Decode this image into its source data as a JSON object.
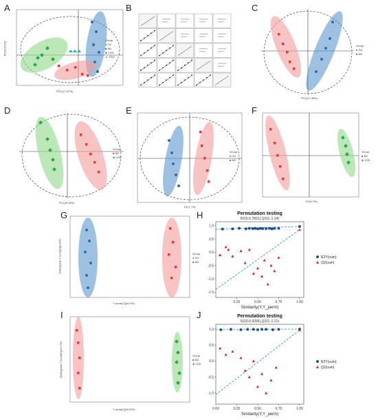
{
  "panel_letters": [
    "A",
    "B",
    "C",
    "D",
    "E",
    "F",
    "G",
    "H",
    "I",
    "J"
  ],
  "colors": {
    "ck": "#2a6fa8",
    "nd": "#e03a3a",
    "ygd": "#2ea84a",
    "ydg": "#20b2aa",
    "ck_fill": "#4f8cc9",
    "nd_fill": "#f29b9b",
    "ygd_fill": "#8fd98a",
    "r2y": "#1f4f8f",
    "q2": "#e01818",
    "dash": "#2a9fd6"
  },
  "legends": {
    "a": {
      "title": "Group",
      "items": [
        "CH",
        "ND",
        "YGD",
        "YDG"
      ]
    },
    "c": {
      "title": "Group",
      "items": [
        "CH",
        "ND"
      ]
    },
    "d": {
      "title": "Group",
      "items": [
        "ND",
        "YGD"
      ]
    },
    "e": {
      "title": "Group",
      "items": [
        "CH",
        "ND"
      ]
    },
    "f": {
      "title": "Group",
      "items": [
        "ND",
        "YGD"
      ]
    },
    "g": {
      "title": "Group",
      "items": [
        "CH",
        "ND"
      ]
    },
    "i": {
      "title": "Group",
      "items": [
        "ND",
        "YGE"
      ]
    },
    "h": {
      "items": [
        "R2Y(cum)",
        "Q2(cum)"
      ]
    },
    "j": {
      "items": [
        "R2Y(cum)",
        "Q2(cum)"
      ]
    }
  },
  "axes": {
    "a": {
      "x": "PC1(17.37%)",
      "y": "PC2(10.1%)"
    },
    "c": {
      "x": "PC1(17.48%)",
      "y": "PC2(15.1%)"
    },
    "d": {
      "x": "PC1(20.8%)",
      "y": "PC2(14.6%)"
    },
    "e": {
      "x": "P1(7.7%)",
      "y": "O1(8.6%)"
    },
    "f": {
      "x": "P1(6.7%)",
      "y": "O1(9.2%)"
    },
    "g": {
      "x": "T score[1](16.9%)",
      "y": "Orthogonal T score[1](9.8%)"
    },
    "i": {
      "x": "T score[1](19.5%)",
      "y": "Orthogonal T score[1](10.7%)"
    }
  },
  "chart_data": [
    {
      "type": "scatter",
      "panel": "H",
      "title": "Permutation testing",
      "subtitle": "R2(0.0.7831),Q2(0,-1.24)",
      "xlabel": "Similarity(Y,Y_perm)",
      "ylabel": "",
      "xlim": [
        0.0,
        1.05
      ],
      "ylim": [
        -1.7,
        1.15
      ],
      "xticks": [
        "0.25",
        "0.50",
        "0.75",
        "1.00"
      ],
      "yticks": [
        "1.0",
        "0.5",
        "0.0",
        "-0.5",
        "-1.0",
        "-1.5"
      ],
      "legend_position": "right",
      "series": [
        {
          "name": "R2Y(cum)",
          "points": [
            [
              0.08,
              0.87
            ],
            [
              0.2,
              0.88
            ],
            [
              0.28,
              0.9
            ],
            [
              0.36,
              0.88
            ],
            [
              0.4,
              0.9
            ],
            [
              0.44,
              0.89
            ],
            [
              0.47,
              0.9
            ],
            [
              0.5,
              0.88
            ],
            [
              0.53,
              0.9
            ],
            [
              0.56,
              0.89
            ],
            [
              0.6,
              0.89
            ],
            [
              0.64,
              0.9
            ],
            [
              0.67,
              0.88
            ],
            [
              0.7,
              0.9
            ],
            [
              0.75,
              0.9
            ],
            [
              1.0,
              0.97
            ]
          ]
        },
        {
          "name": "Q2(cum)",
          "points": [
            [
              0.05,
              -0.1
            ],
            [
              0.12,
              0.2
            ],
            [
              0.15,
              0.1
            ],
            [
              0.2,
              -0.15
            ],
            [
              0.3,
              0.05
            ],
            [
              0.35,
              -0.4
            ],
            [
              0.4,
              0.1
            ],
            [
              0.45,
              -0.8
            ],
            [
              0.5,
              -0.6
            ],
            [
              0.55,
              -0.9
            ],
            [
              0.58,
              -0.3
            ],
            [
              0.62,
              -1.2
            ],
            [
              0.66,
              -0.5
            ],
            [
              0.7,
              -0.7
            ],
            [
              0.75,
              -0.2
            ],
            [
              1.0,
              0.85
            ]
          ]
        }
      ]
    },
    {
      "type": "scatter",
      "panel": "J",
      "title": "Permutation testing",
      "subtitle": "R2(0,0.9266),Q2(0,-1.21)",
      "xlabel": "Similarity(Y,Y_perm)",
      "ylabel": "",
      "xlim": [
        0.0,
        1.05
      ],
      "ylim": [
        -1.35,
        1.15
      ],
      "xticks": [
        "0.00",
        "0.25",
        "0.50",
        "0.75",
        "1.00"
      ],
      "yticks": [
        "1.0",
        "0.5",
        "0.0",
        "-0.5",
        "-1.0"
      ],
      "legend_position": "right",
      "series": [
        {
          "name": "R2Y(cum)",
          "points": [
            [
              0.06,
              0.98
            ],
            [
              0.18,
              0.99
            ],
            [
              0.3,
              0.98
            ],
            [
              0.38,
              0.99
            ],
            [
              0.45,
              0.99
            ],
            [
              0.5,
              0.98
            ],
            [
              0.55,
              0.99
            ],
            [
              0.6,
              0.99
            ],
            [
              0.68,
              0.98
            ],
            [
              0.75,
              0.99
            ],
            [
              1.0,
              1.0
            ]
          ]
        },
        {
          "name": "Q2(cum)",
          "points": [
            [
              0.05,
              0.4
            ],
            [
              0.12,
              0.2
            ],
            [
              0.2,
              0.3
            ],
            [
              0.3,
              0.1
            ],
            [
              0.35,
              -0.3
            ],
            [
              0.4,
              -0.5
            ],
            [
              0.45,
              0.0
            ],
            [
              0.5,
              -0.8
            ],
            [
              0.55,
              -0.4
            ],
            [
              0.6,
              -1.0
            ],
            [
              0.66,
              -0.6
            ],
            [
              0.72,
              -0.2
            ],
            [
              1.0,
              0.97
            ]
          ]
        }
      ]
    }
  ]
}
